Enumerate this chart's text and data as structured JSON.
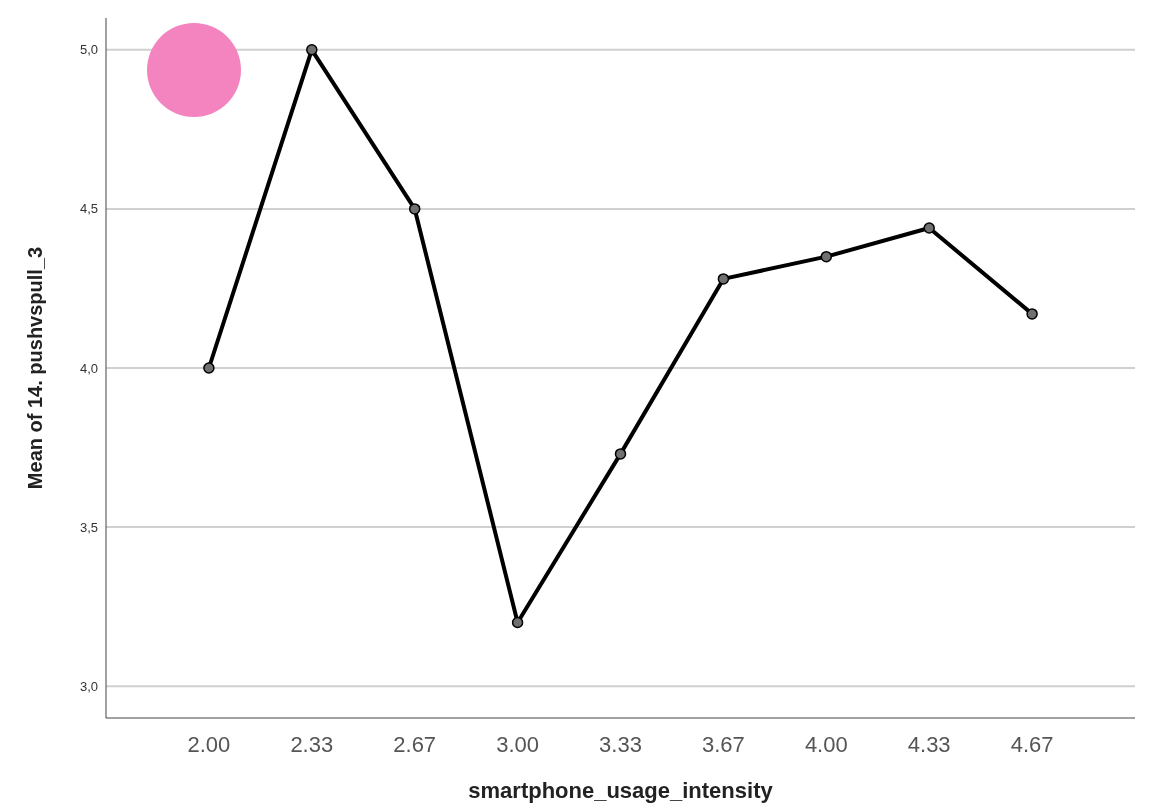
{
  "chart_data": {
    "type": "line",
    "xlabel": "smartphone_usage_intensity",
    "ylabel": "Mean of 14. pushvspull_3",
    "categories": [
      "2.00",
      "2.33",
      "2.67",
      "3.00",
      "3.33",
      "3.67",
      "4.00",
      "4.33",
      "4.67"
    ],
    "series": [
      {
        "color": "#000000",
        "values": [
          4.0,
          5.0,
          4.5,
          3.2,
          3.73,
          4.28,
          4.35,
          4.44,
          4.17
        ]
      }
    ],
    "ylim": [
      2.9,
      5.1
    ],
    "yticks": [
      {
        "value": 3,
        "label": "3,0"
      },
      {
        "value": 3.5,
        "label": "3,5"
      },
      {
        "value": 4,
        "label": "4,0"
      },
      {
        "value": 4.5,
        "label": "4,5"
      },
      {
        "value": 5,
        "label": "5,0"
      }
    ],
    "grid": "y",
    "marker": "circle",
    "line_style": "solid"
  }
}
